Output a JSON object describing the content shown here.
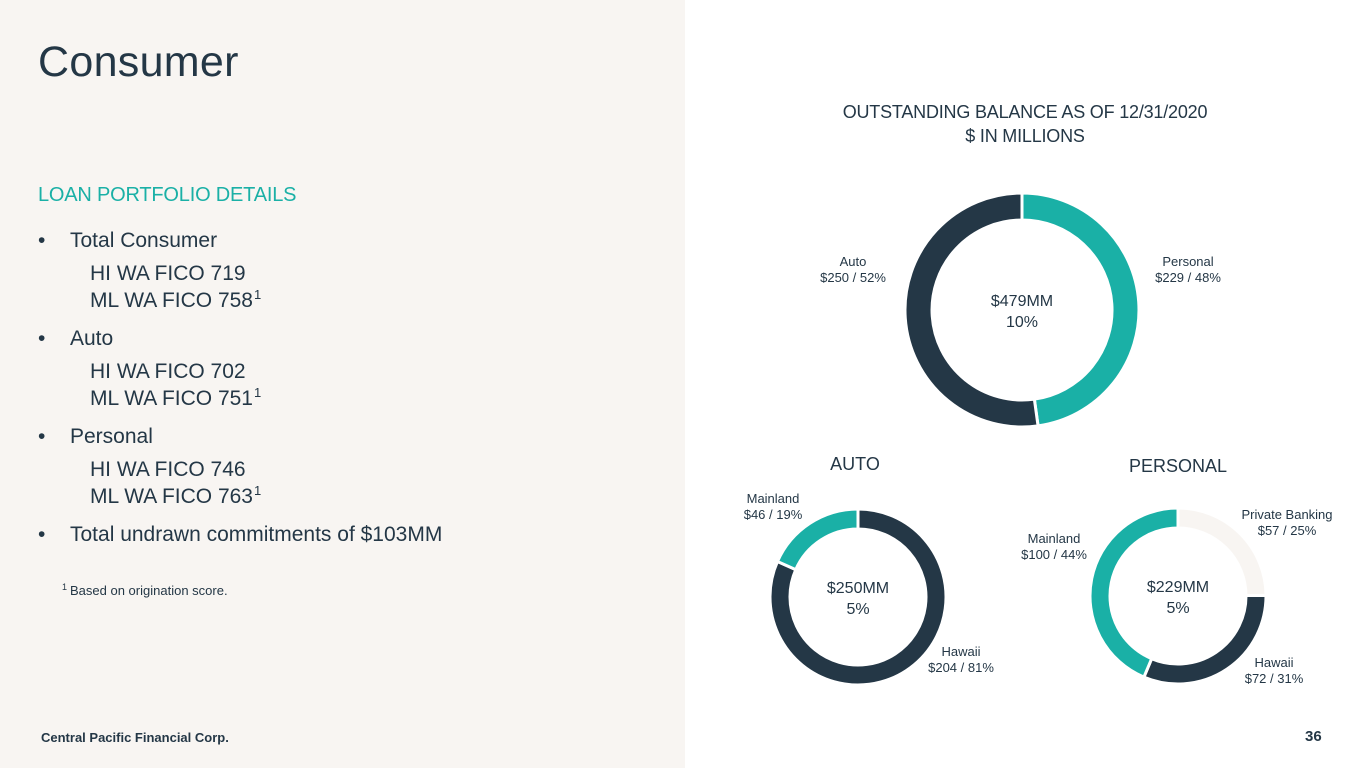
{
  "title": "Consumer",
  "section_heading": "LOAN PORTFOLIO DETAILS",
  "bullets": [
    {
      "label": "Total Consumer",
      "sub": [
        {
          "text": "HI WA FICO 719",
          "sup": ""
        },
        {
          "text": "ML WA FICO 758",
          "sup": "1"
        }
      ]
    },
    {
      "label": "Auto",
      "sub": [
        {
          "text": "HI WA FICO 702",
          "sup": ""
        },
        {
          "text": "ML WA FICO 751",
          "sup": "1"
        }
      ]
    },
    {
      "label": "Personal",
      "sub": [
        {
          "text": "HI WA FICO 746",
          "sup": ""
        },
        {
          "text": "ML WA FICO 763",
          "sup": "1"
        }
      ]
    },
    {
      "label": "Total undrawn commitments of $103MM",
      "sub": []
    }
  ],
  "bullet_glyph": "•",
  "footnote": {
    "marker": "1",
    "text": "Based on origination score."
  },
  "footer": {
    "company": "Central Pacific Financial Corp.",
    "page": "36"
  },
  "colors": {
    "navy": "#243746",
    "teal": "#1ab0a6",
    "light": "#f8f5f2"
  },
  "chart_title": [
    "OUTSTANDING BALANCE AS OF 12/31/2020",
    "$ IN MILLIONS"
  ],
  "chart_data": [
    {
      "type": "pie",
      "id": "total",
      "title": "",
      "categories": [
        "Personal",
        "Auto"
      ],
      "values": [
        229,
        250
      ],
      "labels": [
        [
          "Personal",
          "$229 / 48%"
        ],
        [
          "Auto",
          "$250 / 52%"
        ]
      ],
      "colors": [
        "#1ab0a6",
        "#243746"
      ],
      "center": [
        "$479MM",
        "10%"
      ]
    },
    {
      "type": "pie",
      "id": "auto",
      "title": "AUTO",
      "categories": [
        "Hawaii",
        "Mainland"
      ],
      "values": [
        204,
        46
      ],
      "labels": [
        [
          "Hawaii",
          "$204 / 81%"
        ],
        [
          "Mainland",
          "$46 / 19%"
        ]
      ],
      "colors": [
        "#243746",
        "#1ab0a6"
      ],
      "center": [
        "$250MM",
        "5%"
      ]
    },
    {
      "type": "pie",
      "id": "personal",
      "title": "PERSONAL",
      "categories": [
        "Private Banking",
        "Hawaii",
        "Mainland"
      ],
      "values": [
        57,
        72,
        100
      ],
      "labels": [
        [
          "Private Banking",
          "$57 / 25%"
        ],
        [
          "Hawaii",
          "$72 / 31%"
        ],
        [
          "Mainland",
          "$100 / 44%"
        ]
      ],
      "colors": [
        "#f8f5f2",
        "#243746",
        "#1ab0a6"
      ],
      "center": [
        "$229MM",
        "5%"
      ]
    }
  ]
}
